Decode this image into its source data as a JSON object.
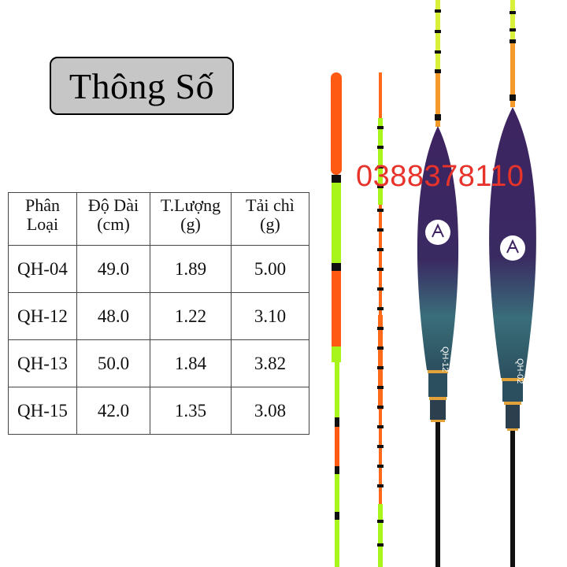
{
  "title": "Thông Số",
  "phone": "0388378110",
  "table": {
    "headers": [
      [
        "Phân",
        "Loại"
      ],
      [
        "Độ Dài",
        "(cm)"
      ],
      [
        "T.Lượng",
        "(g)"
      ],
      [
        "Tải chì",
        "(g)"
      ]
    ],
    "rows": [
      [
        "QH-04",
        "49.0",
        "1.89",
        "5.00"
      ],
      [
        "QH-12",
        "48.0",
        "1.22",
        "3.10"
      ],
      [
        "QH-13",
        "50.0",
        "1.84",
        "3.82"
      ],
      [
        "QH-15",
        "42.0",
        "1.35",
        "3.08"
      ]
    ]
  },
  "float_labels": [
    "QH-12",
    "QH-02"
  ],
  "colors": {
    "orange": "#ff5a14",
    "lime": "#a8f51c",
    "purple": "#3d2461",
    "teal": "#3a6e7a",
    "gold": "#e3a33a",
    "phone": "#e8332b"
  }
}
